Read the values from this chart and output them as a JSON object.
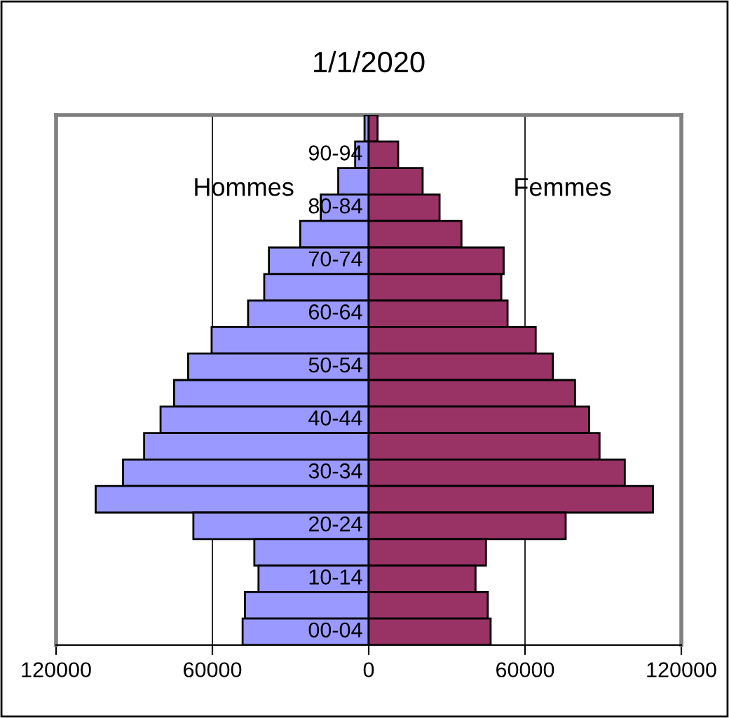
{
  "chart_data": {
    "type": "bar",
    "orientation": "horizontal",
    "stacked": true,
    "title": "1/1/2020",
    "categories": [
      null,
      "90-94",
      null,
      "80-84",
      null,
      "70-74",
      null,
      "60-64",
      null,
      "50-54",
      null,
      "40-44",
      null,
      "30-34",
      null,
      "20-24",
      null,
      "10-14",
      null,
      "00-04"
    ],
    "series": [
      {
        "name": "Hommes",
        "color": "#9999ff",
        "values": [
          -1600,
          -5200,
          -11700,
          -18400,
          -26300,
          -38300,
          -40100,
          -46300,
          -60300,
          -69300,
          -74700,
          -79900,
          -86200,
          -94300,
          -104800,
          -67300,
          -43900,
          -42300,
          -47500,
          -48400
        ]
      },
      {
        "name": "Femmes",
        "color": "#993366",
        "values": [
          3400,
          11300,
          20700,
          27200,
          35600,
          51800,
          50900,
          53300,
          64100,
          70700,
          79200,
          84600,
          88600,
          98300,
          109100,
          75600,
          45000,
          41000,
          45700,
          46800
        ]
      }
    ],
    "xlim": [
      -120000,
      120000
    ],
    "xticks": [
      {
        "value": -120000,
        "label": "120000"
      },
      {
        "value": -60000,
        "label": "60000"
      },
      0,
      60000,
      120000
    ],
    "grid": "x",
    "legend": false
  }
}
